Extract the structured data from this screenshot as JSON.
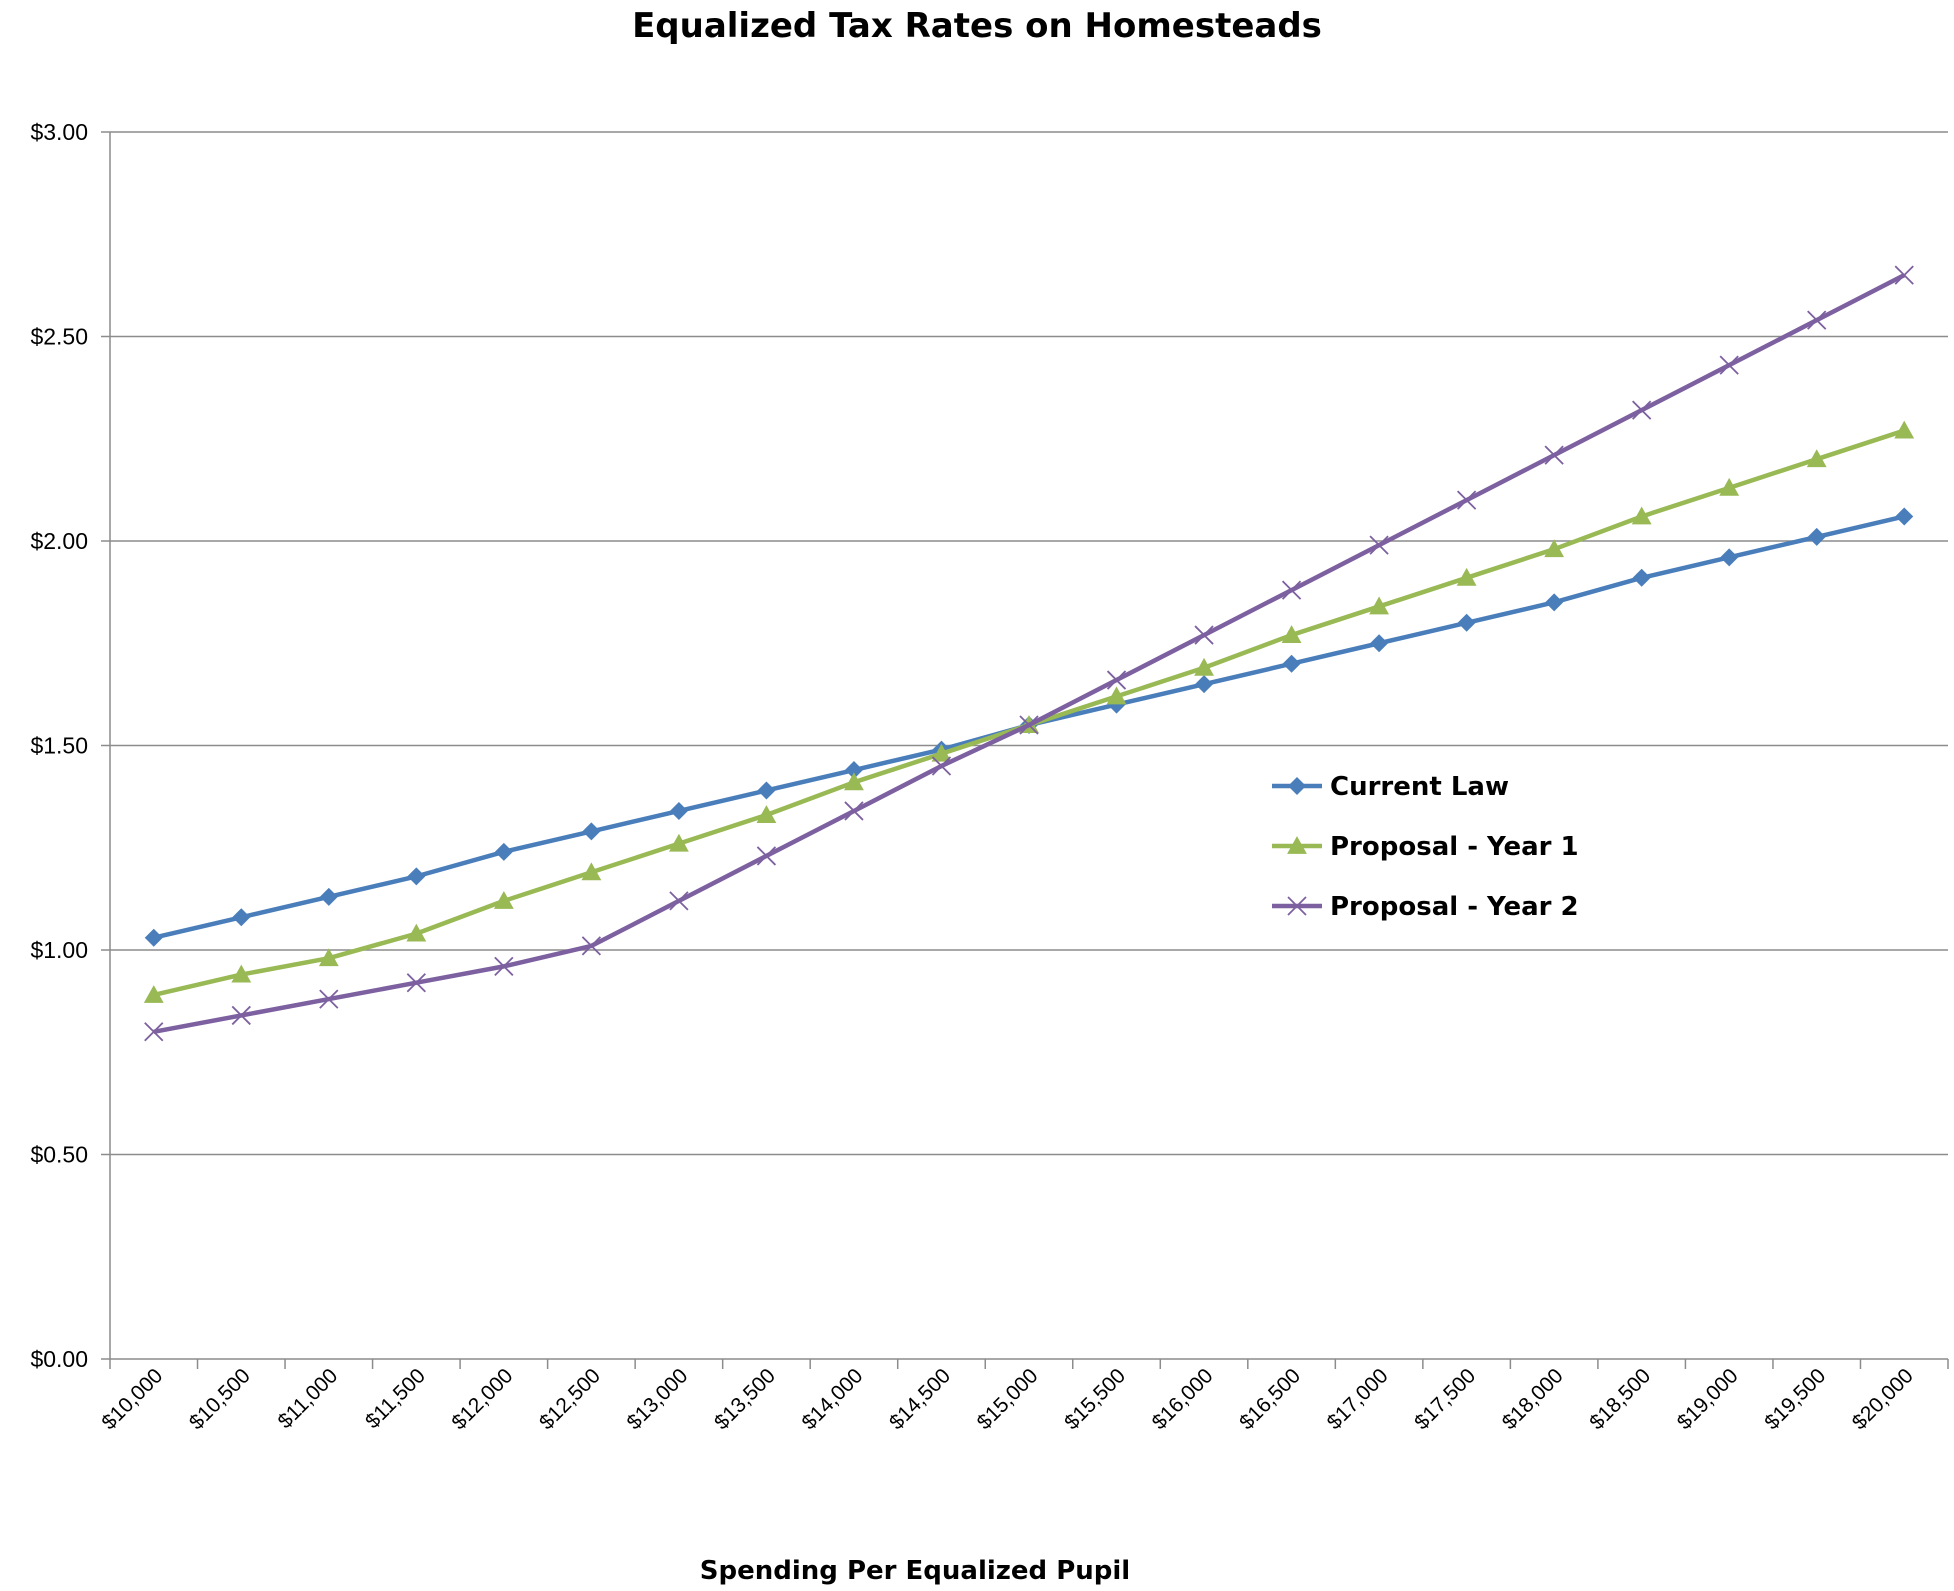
{
  "chart_data": {
    "type": "line",
    "title": "Equalized Tax Rates on Homesteads",
    "xlabel": "Spending Per Equalized Pupil",
    "ylabel": "",
    "ylim": [
      0,
      3
    ],
    "y_ticks": [
      "$0.00",
      "$0.50",
      "$1.00",
      "$1.50",
      "$2.00",
      "$2.50",
      "$3.00"
    ],
    "y_tick_values": [
      0,
      0.5,
      1.0,
      1.5,
      2.0,
      2.5,
      3.0
    ],
    "categories": [
      "$10,000",
      "$10,500",
      "$11,000",
      "$11,500",
      "$12,000",
      "$12,500",
      "$13,000",
      "$13,500",
      "$14,000",
      "$14,500",
      "$15,000",
      "$15,500",
      "$16,000",
      "$16,500",
      "$17,000",
      "$17,500",
      "$18,000",
      "$18,500",
      "$19,000",
      "$19,500",
      "$20,000"
    ],
    "grid": true,
    "legend_position": "right",
    "series": [
      {
        "name": "Current Law",
        "color": "#4a7ebb",
        "marker": "diamond",
        "values": [
          1.03,
          1.08,
          1.13,
          1.18,
          1.24,
          1.29,
          1.34,
          1.39,
          1.44,
          1.49,
          1.55,
          1.6,
          1.65,
          1.7,
          1.75,
          1.8,
          1.85,
          1.91,
          1.96,
          2.01,
          2.06
        ]
      },
      {
        "name": "Proposal - Year 1",
        "color": "#98b954",
        "marker": "triangle",
        "values": [
          0.89,
          0.94,
          0.98,
          1.04,
          1.12,
          1.19,
          1.26,
          1.33,
          1.41,
          1.48,
          1.55,
          1.62,
          1.69,
          1.77,
          1.84,
          1.91,
          1.98,
          2.06,
          2.13,
          2.2,
          2.27
        ]
      },
      {
        "name": "Proposal - Year 2",
        "color": "#7d60a0",
        "marker": "x",
        "values": [
          0.8,
          0.84,
          0.88,
          0.92,
          0.96,
          1.01,
          1.12,
          1.23,
          1.34,
          1.45,
          1.55,
          1.66,
          1.77,
          1.88,
          1.99,
          2.1,
          2.21,
          2.32,
          2.43,
          2.54,
          2.65
        ]
      }
    ]
  }
}
